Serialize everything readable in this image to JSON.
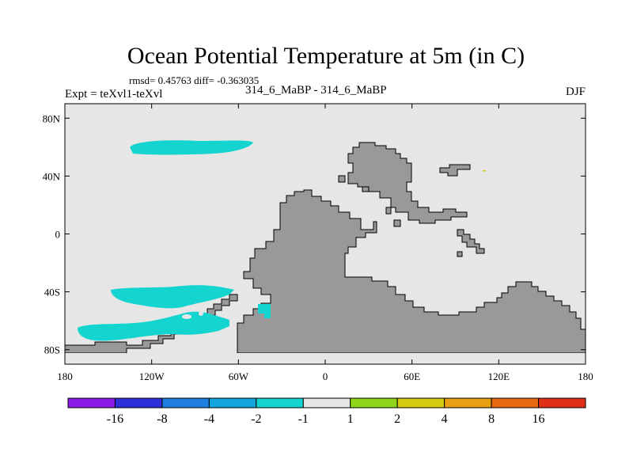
{
  "header": {
    "title": "Ocean Potential Temperature at 5m (in C)",
    "stats": "rmsd= 0.45763 diff= -0.363035",
    "expt": "Expt = teXvl1-teXvl",
    "subtitle": "314_6_MaBP - 314_6_MaBP",
    "season": "DJF"
  },
  "chart_data": {
    "type": "heatmap",
    "title": "Ocean Potential Temperature at 5m (in C)",
    "variable": "ocean potential temperature difference",
    "units": "C",
    "x_range": [
      -180,
      180
    ],
    "y_range": [
      -90,
      90
    ],
    "x_ticks": [
      {
        "value": -180,
        "label": "180"
      },
      {
        "value": -120,
        "label": "120W"
      },
      {
        "value": -60,
        "label": "60W"
      },
      {
        "value": 0,
        "label": "0"
      },
      {
        "value": 60,
        "label": "60E"
      },
      {
        "value": 120,
        "label": "120E"
      },
      {
        "value": 180,
        "label": "180"
      }
    ],
    "y_ticks": [
      {
        "value": 80,
        "label": "80N"
      },
      {
        "value": 40,
        "label": "40N"
      },
      {
        "value": 0,
        "label": "0"
      },
      {
        "value": -40,
        "label": "40S"
      },
      {
        "value": -80,
        "label": "80S"
      }
    ],
    "colorbar": {
      "bins": [
        {
          "color": "#8c1ae6",
          "range": "< -16"
        },
        {
          "color": "#2f2fd8",
          "range": "-16 to -8"
        },
        {
          "color": "#1f7fe0",
          "range": "-8 to -4"
        },
        {
          "color": "#12a6dd",
          "range": "-4 to -2"
        },
        {
          "color": "#14d4d0",
          "range": "-2 to -1"
        },
        {
          "color": "#e6e6e6",
          "range": "-1 to 1"
        },
        {
          "color": "#8fd61a",
          "range": "1 to 2"
        },
        {
          "color": "#d6cc0f",
          "range": "2 to 4"
        },
        {
          "color": "#e6a012",
          "range": "4 to 8"
        },
        {
          "color": "#e66a12",
          "range": "8 to 16"
        },
        {
          "color": "#dd3016",
          "range": "> 16"
        }
      ],
      "labels": [
        "-16",
        "-8",
        "-4",
        "-2",
        "-1",
        "1",
        "2",
        "4",
        "8",
        "16"
      ]
    },
    "colors": {
      "background": "#e6e6e6",
      "land": "#999999",
      "anomaly": "#14d4d0"
    },
    "regions": [
      {
        "name": "north-pacific-cool-anomaly",
        "bin": "-2 to -1"
      },
      {
        "name": "south-pacific-cool-anomaly-upper",
        "bin": "-2 to -1"
      },
      {
        "name": "south-pacific-cool-anomaly-lower",
        "bin": "-2 to -1"
      }
    ]
  }
}
